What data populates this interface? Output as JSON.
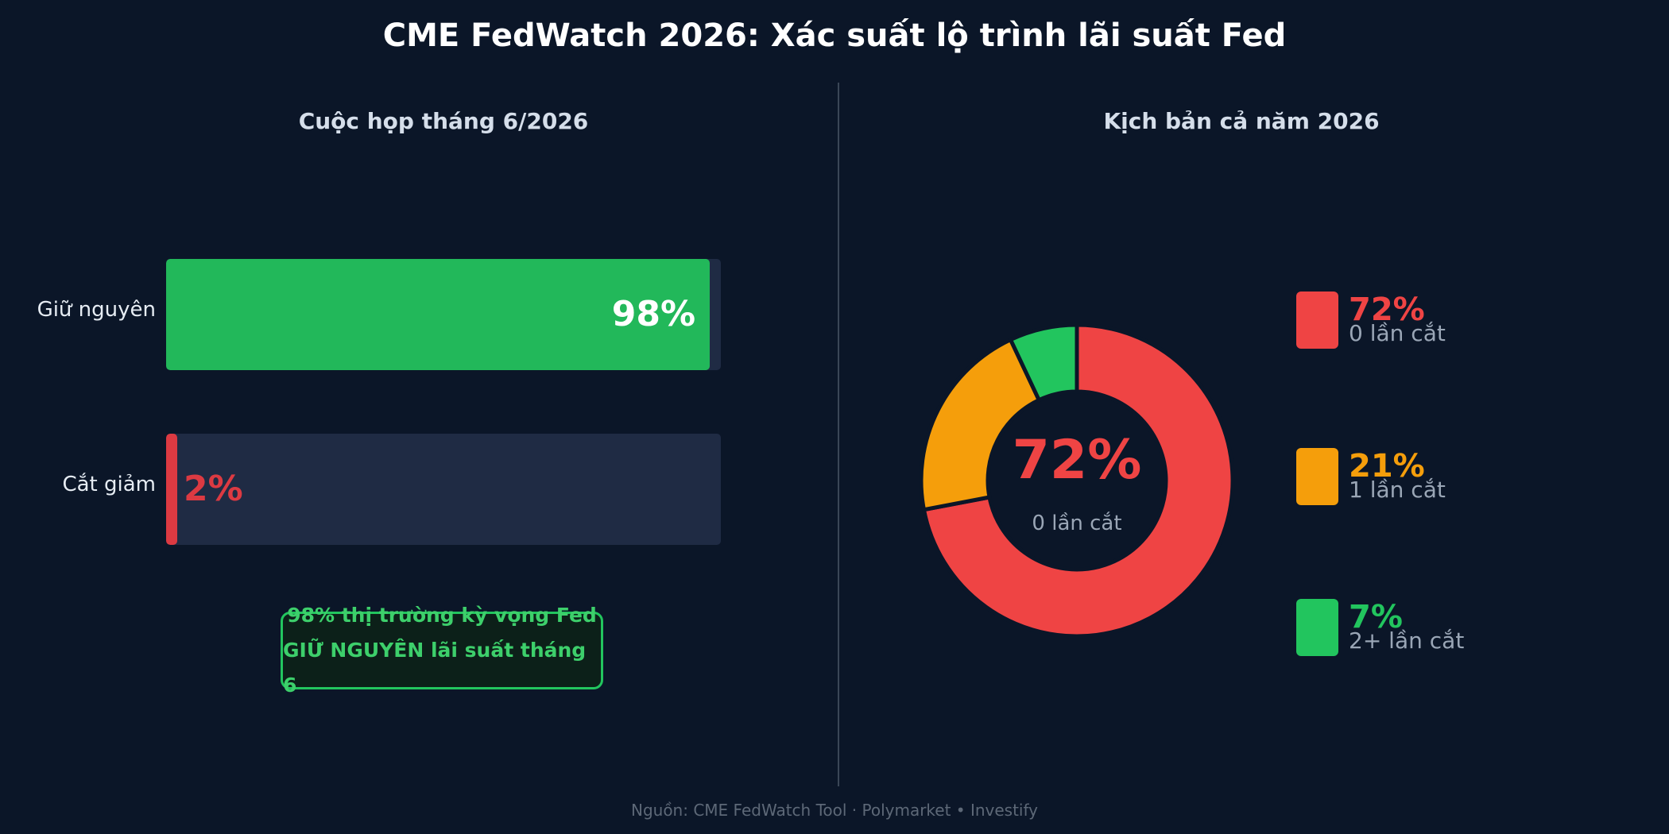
{
  "title": "CME FedWatch 2026: Xác suất lộ trình lãi suất Fed",
  "chart_data": [
    {
      "type": "bar",
      "orientation": "horizontal",
      "title": "Cuộc họp tháng 6/2026",
      "categories": [
        "Giữ nguyên",
        "Cắt giảm"
      ],
      "values": [
        98,
        2
      ],
      "value_labels": [
        "98%",
        "2%"
      ],
      "colors": [
        "#22b85a",
        "#dc3a42"
      ],
      "xlim": [
        0,
        100
      ]
    },
    {
      "type": "pie",
      "style": "donut",
      "title": "Kịch bản cả năm 2026",
      "categories": [
        "0 lần cắt",
        "1 lần cắt",
        "2+ lần cắt"
      ],
      "values": [
        72,
        21,
        7
      ],
      "value_labels": [
        "72%",
        "21%",
        "7%"
      ],
      "colors": [
        "#ef4444",
        "#f59e0b",
        "#22c55e"
      ],
      "center_value": "72%",
      "center_label": "0 lần cắt",
      "legend_placement": "right"
    }
  ],
  "callout": {
    "line1": "98% thị trường kỳ vọng Fed",
    "line2": "GIỮ NGUYÊN lãi suất tháng 6"
  },
  "source": "Nguồn: CME FedWatch Tool · Polymarket  •  Investify"
}
